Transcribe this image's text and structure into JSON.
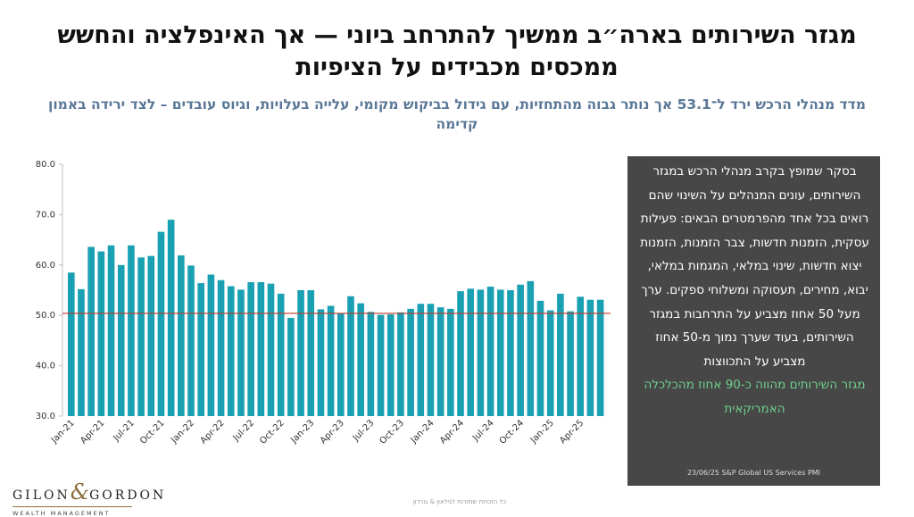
{
  "title": "מגזר השירותים בארה״ב ממשיך להתרחב ביוני — אך האינפלציה והחשש ממכסים מכבידים על הציפיות",
  "subtitle": "מדד מנהלי הרכש ירד ל־53.1 אך נותר גבוה מהתחזיות, עם גידול בביקוש מקומי, עלייה בעלויות, וגיוס עובדים – לצד ירידה באמון קדימה",
  "panel": {
    "body": "בסקר שמופץ בקרב מנהלי הרכש במגזר השירותים, עונים המנהלים על השינוי שהם רואים בכל אחד מהפרמטרים הבאים: פעילות עסקית, הזמנות חדשות, צבר הזמנות, הזמנות יצוא חדשות, שינוי במלאי, המגמות במלאי, יבוא, מחירים, תעסוקה ומשלוחי ספקים. ערך מעל 50 אחוז מצביע על התרחבות במגזר השירותים, בעוד שערך נמוך מ-50 אחוז מצביע על התכווצות",
    "highlight": "מגזר השירותים מהווה כ-90 אחוז מהכלכלה האמריקאית",
    "source": "23/06/25  S&P Global US Services PMI"
  },
  "logo": {
    "name_left": "GILON",
    "amp": "&",
    "name_right": "GORDON",
    "sub": "WEALTH MANAGEMENT"
  },
  "footer": "כל הזכויות שמורות לגילאון & גורדון",
  "colors": {
    "bar": "#1aa0b3",
    "threshold": "#c0392b",
    "panel_bg": "#474747",
    "highlight": "#6fcf8c",
    "subtitle": "#5a7796"
  },
  "chart_data": {
    "type": "bar",
    "title": "",
    "xlabel": "",
    "ylabel": "",
    "ylim": [
      30,
      80
    ],
    "yticks": [
      "30.0",
      "40.0",
      "50.0",
      "60.0",
      "70.0",
      "80.0"
    ],
    "threshold": 50.4,
    "grid": false,
    "x_tick_labels": [
      "Jan-21",
      "Apr-21",
      "Jul-21",
      "Oct-21",
      "Jan-22",
      "Apr-22",
      "Jul-22",
      "Oct-22",
      "Jan-23",
      "Apr-23",
      "Jul-23",
      "Oct-23",
      "Jan-24",
      "Apr-24",
      "Jul-24",
      "Oct-24",
      "Jan-25",
      "Apr-25"
    ],
    "categories": [
      "Jan-21",
      "Feb-21",
      "Mar-21",
      "Apr-21",
      "May-21",
      "Jun-21",
      "Jul-21",
      "Aug-21",
      "Sep-21",
      "Oct-21",
      "Nov-21",
      "Dec-21",
      "Jan-22",
      "Feb-22",
      "Mar-22",
      "Apr-22",
      "May-22",
      "Jun-22",
      "Jul-22",
      "Aug-22",
      "Sep-22",
      "Oct-22",
      "Nov-22",
      "Dec-22",
      "Jan-23",
      "Feb-23",
      "Mar-23",
      "Apr-23",
      "May-23",
      "Jun-23",
      "Jul-23",
      "Aug-23",
      "Sep-23",
      "Oct-23",
      "Nov-23",
      "Dec-23",
      "Jan-24",
      "Feb-24",
      "Mar-24",
      "Apr-24",
      "May-24",
      "Jun-24",
      "Jul-24",
      "Aug-24",
      "Sep-24",
      "Oct-24",
      "Nov-24",
      "Dec-24",
      "Jan-25",
      "Feb-25",
      "Mar-25",
      "Apr-25",
      "May-25",
      "Jun-25"
    ],
    "values": [
      58.5,
      55.2,
      63.6,
      62.7,
      63.9,
      60.0,
      63.9,
      61.5,
      61.8,
      66.6,
      69.0,
      61.9,
      59.9,
      56.4,
      58.1,
      57.0,
      55.8,
      55.1,
      56.6,
      56.6,
      56.3,
      54.3,
      49.5,
      55.0,
      55.0,
      51.2,
      51.9,
      50.4,
      53.8,
      52.4,
      50.7,
      50.1,
      50.2,
      50.6,
      51.3,
      52.3,
      52.3,
      51.6,
      51.3,
      54.8,
      55.3,
      55.1,
      55.7,
      55.1,
      55.0,
      56.1,
      56.8,
      52.9,
      51.0,
      54.3,
      50.8,
      53.7,
      53.1,
      53.1
    ]
  }
}
